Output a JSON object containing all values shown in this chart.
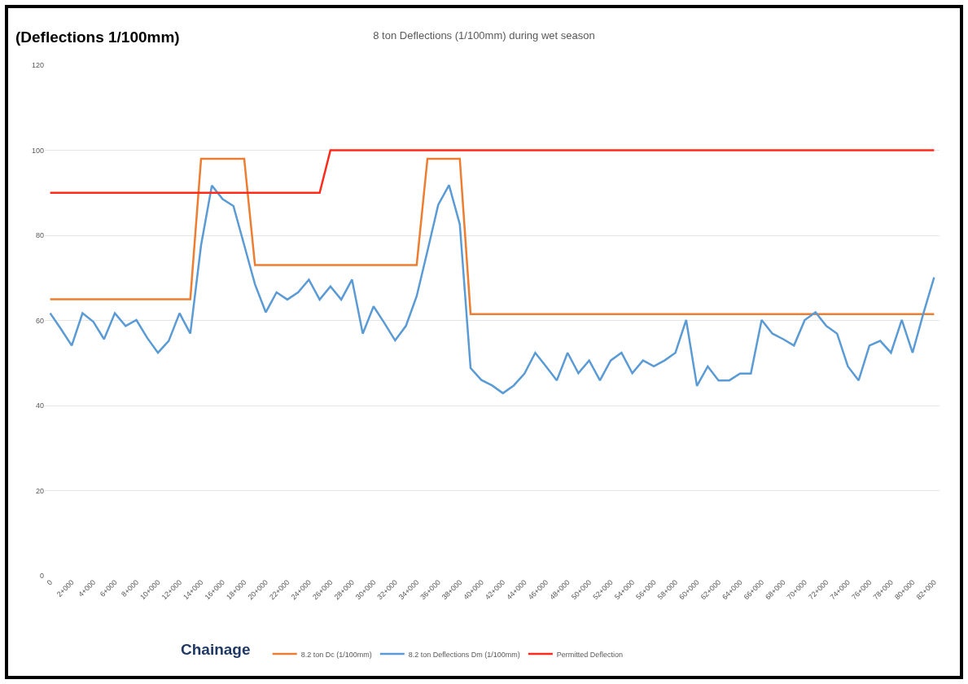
{
  "chart_data": {
    "type": "line",
    "title": "8 ton Deflections (1/100mm) during wet season",
    "ylabel": "(Deflections 1/100mm)",
    "xlabel": "Chainage",
    "categories": [
      "0",
      null,
      "2+000",
      null,
      "4+000",
      null,
      "6+000",
      null,
      "8+000",
      null,
      "10+000",
      null,
      "12+000",
      null,
      "14+000",
      null,
      "16+000",
      null,
      "18+000",
      null,
      "20+000",
      null,
      "22+000",
      null,
      "24+000",
      null,
      "26+000",
      null,
      "28+000",
      null,
      "30+000",
      null,
      "32+000",
      null,
      "34+000",
      null,
      "36+000",
      null,
      "38+000",
      null,
      "40+000",
      null,
      "42+000",
      null,
      "44+000",
      null,
      "46+000",
      null,
      "48+000",
      null,
      "50+000",
      null,
      "52+000",
      null,
      "54+000",
      null,
      "56+000",
      null,
      "58+000",
      null,
      "60+000",
      null,
      "62+000",
      null,
      "64+000",
      null,
      "66+000",
      null,
      "68+000",
      null,
      "70+000",
      null,
      "72+000",
      null,
      "74+000",
      null,
      "76+000",
      null,
      "78+000",
      null,
      "80+000",
      null,
      "82+000"
    ],
    "series": [
      {
        "name": "8.2 ton Dc (1/100mm)",
        "color": "#ed7d31",
        "values": [
          65,
          65,
          65,
          65,
          65,
          65,
          65,
          65,
          65,
          65,
          65,
          65,
          65,
          65,
          98,
          98,
          98,
          98,
          98,
          73,
          73,
          73,
          73,
          73,
          73,
          73,
          73,
          73,
          73,
          73,
          73,
          73,
          73,
          73,
          73,
          98,
          98,
          98,
          98,
          61.5,
          61.5,
          61.5,
          61.5,
          61.5,
          61.5,
          61.5,
          61.5,
          61.5,
          61.5,
          61.5,
          61.5,
          61.5,
          61.5,
          61.5,
          61.5,
          61.5,
          61.5,
          61.5,
          61.5,
          61.5,
          61.5,
          61.5,
          61.5,
          61.5,
          61.5,
          61.5,
          61.5,
          61.5,
          61.5,
          61.5,
          61.5,
          61.5,
          61.5,
          61.5,
          61.5,
          61.5,
          61.5,
          61.5,
          61.5,
          61.5,
          61.5,
          61.5,
          61.5
        ]
      },
      {
        "name": "8.2 ton Deflections Dm (1/100mm)",
        "color": "#5b9bd5",
        "values": [
          61.7,
          58,
          54.1,
          61.7,
          59.7,
          55.6,
          61.7,
          58.7,
          60.1,
          55.9,
          52.4,
          55.2,
          61.7,
          56.9,
          77.7,
          91.7,
          88.5,
          86.9,
          77.7,
          68.5,
          61.9,
          66.6,
          64.9,
          66.6,
          69.6,
          64.9,
          68,
          64.9,
          69.6,
          56.9,
          63.3,
          59.4,
          55.3,
          58.7,
          65.7,
          76.3,
          87.2,
          91.8,
          82.6,
          48.8,
          46,
          44.7,
          42.9,
          44.7,
          47.5,
          52.4,
          49.2,
          45.9,
          52.4,
          47.6,
          50.6,
          45.9,
          50.6,
          52.4,
          47.6,
          50.6,
          49.2,
          50.6,
          52.4,
          60.1,
          44.6,
          49.2,
          45.9,
          45.9,
          47.5,
          47.5,
          60.1,
          56.9,
          55.6,
          54.1,
          60.1,
          61.9,
          58.7,
          56.9,
          49.2,
          45.9,
          54.1,
          55.2,
          52.4,
          60.1,
          52.4,
          61.6,
          70.1
        ]
      },
      {
        "name": "Permitted Deflection",
        "color": "#ff2a1a",
        "values": [
          90,
          90,
          90,
          90,
          90,
          90,
          90,
          90,
          90,
          90,
          90,
          90,
          90,
          90,
          90,
          90,
          90,
          90,
          90,
          90,
          90,
          90,
          90,
          90,
          90,
          90,
          100,
          100,
          100,
          100,
          100,
          100,
          100,
          100,
          100,
          100,
          100,
          100,
          100,
          100,
          100,
          100,
          100,
          100,
          100,
          100,
          100,
          100,
          100,
          100,
          100,
          100,
          100,
          100,
          100,
          100,
          100,
          100,
          100,
          100,
          100,
          100,
          100,
          100,
          100,
          100,
          100,
          100,
          100,
          100,
          100,
          100,
          100,
          100,
          100,
          100,
          100,
          100,
          100,
          100,
          100,
          100,
          100
        ]
      }
    ],
    "ylim": [
      0,
      120
    ],
    "yticks": [
      0,
      20,
      40,
      60,
      80,
      100,
      120
    ],
    "grid": "y",
    "legend": "bottom",
    "marker": "none",
    "line_style": "solid"
  }
}
